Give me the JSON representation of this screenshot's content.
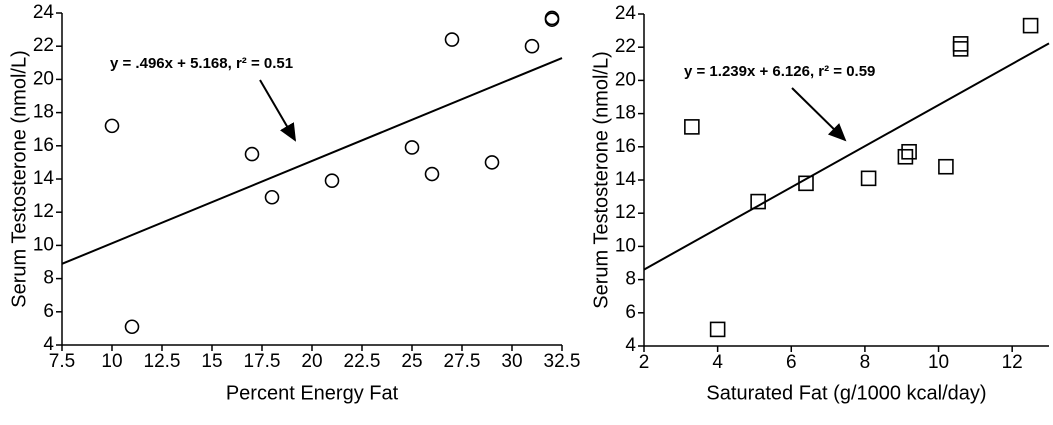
{
  "chart_data": [
    {
      "type": "scatter",
      "marker": "circle",
      "color": "#000000",
      "x_label": "Percent Energy Fat",
      "y_label": "Serum Testosterone (nmol/L)",
      "annotation": "y = .496x + 5.168, r² = 0.51",
      "trend_line": {
        "slope": 0.496,
        "intercept": 5.168
      },
      "x": [
        10,
        11,
        17,
        18,
        21,
        25,
        26,
        27,
        29,
        31,
        32,
        32
      ],
      "values": [
        17.2,
        5.1,
        15.5,
        12.9,
        13.9,
        15.9,
        14.3,
        22.4,
        15,
        22,
        23.7,
        23.6
      ],
      "xlim": [
        7.5,
        32.5
      ],
      "xticks": [
        7.5,
        10,
        12.5,
        15,
        17.5,
        20,
        22.5,
        25,
        27.5,
        30,
        32.5
      ],
      "ylim": [
        4,
        24
      ],
      "yticks": [
        4,
        6,
        8,
        10,
        12,
        14,
        16,
        18,
        20,
        22,
        24
      ]
    },
    {
      "type": "scatter",
      "marker": "square",
      "color": "#000000",
      "x_label": "Saturated Fat (g/1000 kcal/day)",
      "y_label": "Serum Testosterone (nmol/L)",
      "annotation": "y = 1.239x + 6.126, r² = 0.59",
      "trend_line": {
        "slope": 1.239,
        "intercept": 6.126
      },
      "x": [
        3.3,
        4,
        5.1,
        6.4,
        8.1,
        9.1,
        9.2,
        10.2,
        10.6,
        10.6,
        12.5
      ],
      "values": [
        17.2,
        5,
        12.7,
        13.8,
        14.1,
        15.4,
        15.7,
        14.8,
        21.9,
        22.2,
        23.3
      ],
      "xlim": [
        2,
        13
      ],
      "xticks": [
        2,
        4,
        6,
        8,
        10,
        12
      ],
      "ylim": [
        4,
        24
      ],
      "yticks": [
        4,
        6,
        8,
        10,
        12,
        14,
        16,
        18,
        20,
        22,
        24
      ]
    }
  ]
}
